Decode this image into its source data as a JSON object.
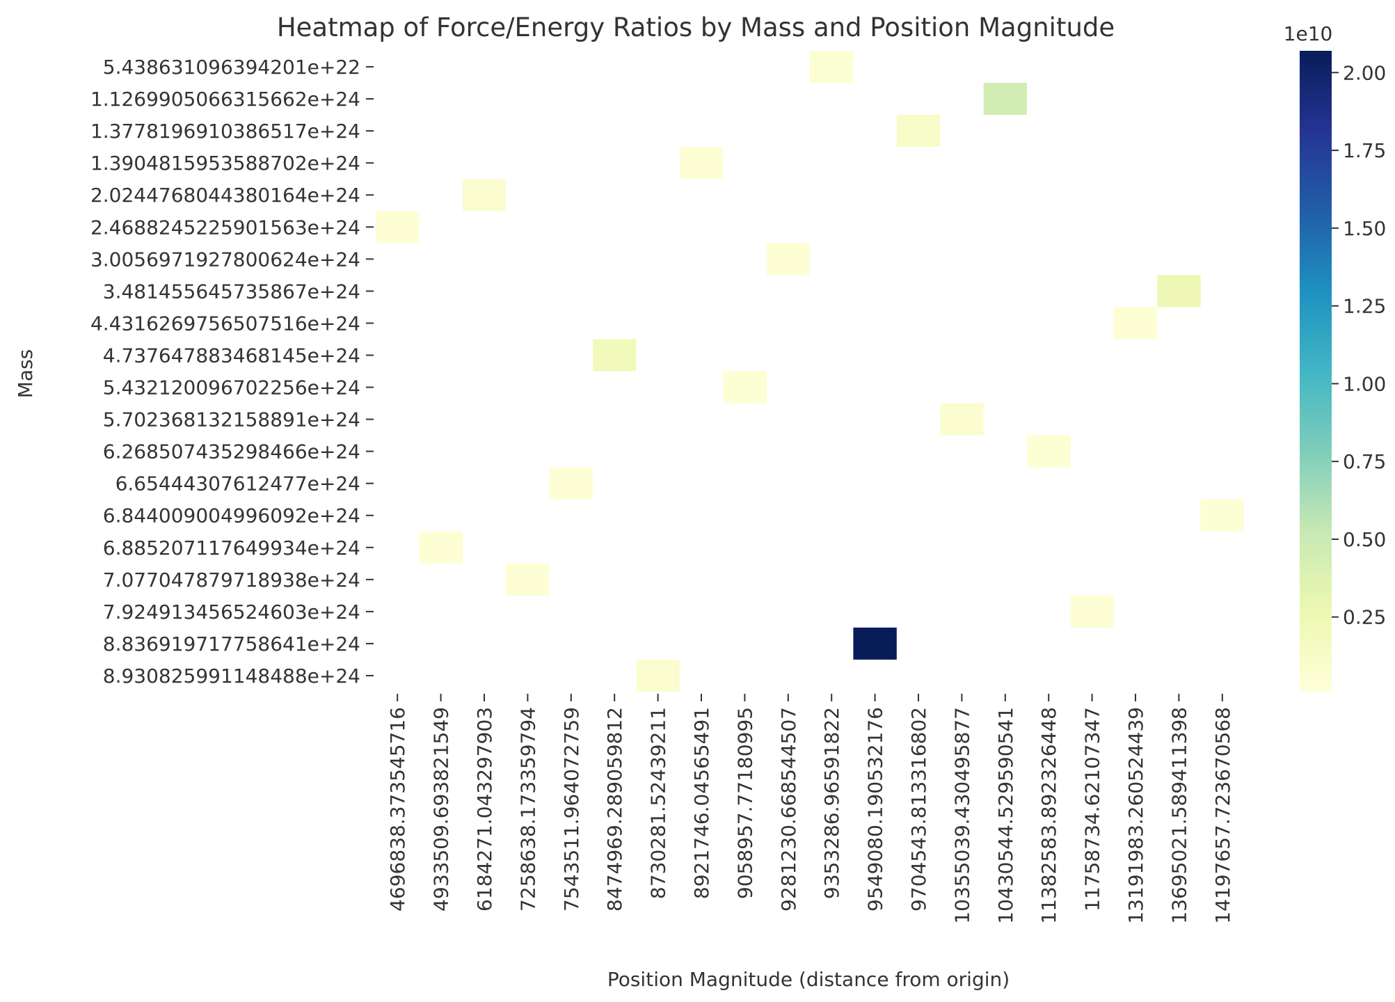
{
  "chart_data": {
    "type": "heatmap",
    "title": "Heatmap of Force/Energy Ratios by Mass and Position Magnitude",
    "xlabel": "Position Magnitude (distance from origin)",
    "ylabel": "Mass",
    "x_categories": [
      "4696838.373545716",
      "4933509.693821549",
      "6184271.043297903",
      "7258638.173359794",
      "7543511.964072759",
      "8474969.289059812",
      "8730281.52439211",
      "8921746.04565491",
      "9058957.77180995",
      "9281230.668544507",
      "9353286.96591822",
      "9549080.190532176",
      "9704543.813316802",
      "10355039.430495877",
      "10430544.529590541",
      "11382583.892326448",
      "11758734.62107347",
      "13191983.260524439",
      "13695021.589411398",
      "14197657.723670568"
    ],
    "y_categories": [
      "5.438631096394201e+22",
      "1.1269905066315662e+24",
      "1.3778196910386517e+24",
      "1.3904815953588702e+24",
      "2.0244768044380164e+24",
      "2.4688245225901563e+24",
      "3.0056971927800624e+24",
      "3.481455645735867e+24",
      "4.4316269756507516e+24",
      "4.737647883468145e+24",
      "5.432120096702256e+24",
      "5.702368132158891e+24",
      "6.268507435298466e+24",
      "6.65444307612477e+24",
      "6.844009004996092e+24",
      "6.885207117649934e+24",
      "7.077047879718938e+24",
      "7.924913456524603e+24",
      "8.836919717758641e+24",
      "8.930825991148488e+24"
    ],
    "cells": [
      {
        "row": 0,
        "col": 10,
        "value": 500000000.0
      },
      {
        "row": 1,
        "col": 14,
        "value": 4500000000.0
      },
      {
        "row": 2,
        "col": 12,
        "value": 1200000000.0
      },
      {
        "row": 3,
        "col": 7,
        "value": 400000000.0
      },
      {
        "row": 4,
        "col": 2,
        "value": 700000000.0
      },
      {
        "row": 5,
        "col": 0,
        "value": 400000000.0
      },
      {
        "row": 6,
        "col": 9,
        "value": 400000000.0
      },
      {
        "row": 7,
        "col": 18,
        "value": 2500000000.0
      },
      {
        "row": 8,
        "col": 17,
        "value": 400000000.0
      },
      {
        "row": 9,
        "col": 5,
        "value": 2000000000.0
      },
      {
        "row": 10,
        "col": 8,
        "value": 500000000.0
      },
      {
        "row": 11,
        "col": 13,
        "value": 700000000.0
      },
      {
        "row": 12,
        "col": 15,
        "value": 500000000.0
      },
      {
        "row": 13,
        "col": 4,
        "value": 400000000.0
      },
      {
        "row": 14,
        "col": 19,
        "value": 500000000.0
      },
      {
        "row": 15,
        "col": 1,
        "value": 400000000.0
      },
      {
        "row": 16,
        "col": 3,
        "value": 400000000.0
      },
      {
        "row": 17,
        "col": 16,
        "value": 400000000.0
      },
      {
        "row": 18,
        "col": 11,
        "value": 20700000000.0
      },
      {
        "row": 19,
        "col": 6,
        "value": 700000000.0
      }
    ],
    "colorbar": {
      "colormap": "YlGnBu",
      "vmin": 100000000.0,
      "vmax": 20700000000.0,
      "ticks": [
        2500000000.0,
        5000000000.0,
        7500000000.0,
        10000000000.0,
        12500000000.0,
        15000000000.0,
        17500000000.0,
        20000000000.0
      ],
      "tick_labels": [
        "0.25",
        "0.50",
        "0.75",
        "1.00",
        "1.25",
        "1.50",
        "1.75",
        "2.00"
      ],
      "offset_label": "1e10"
    },
    "grid": false
  }
}
